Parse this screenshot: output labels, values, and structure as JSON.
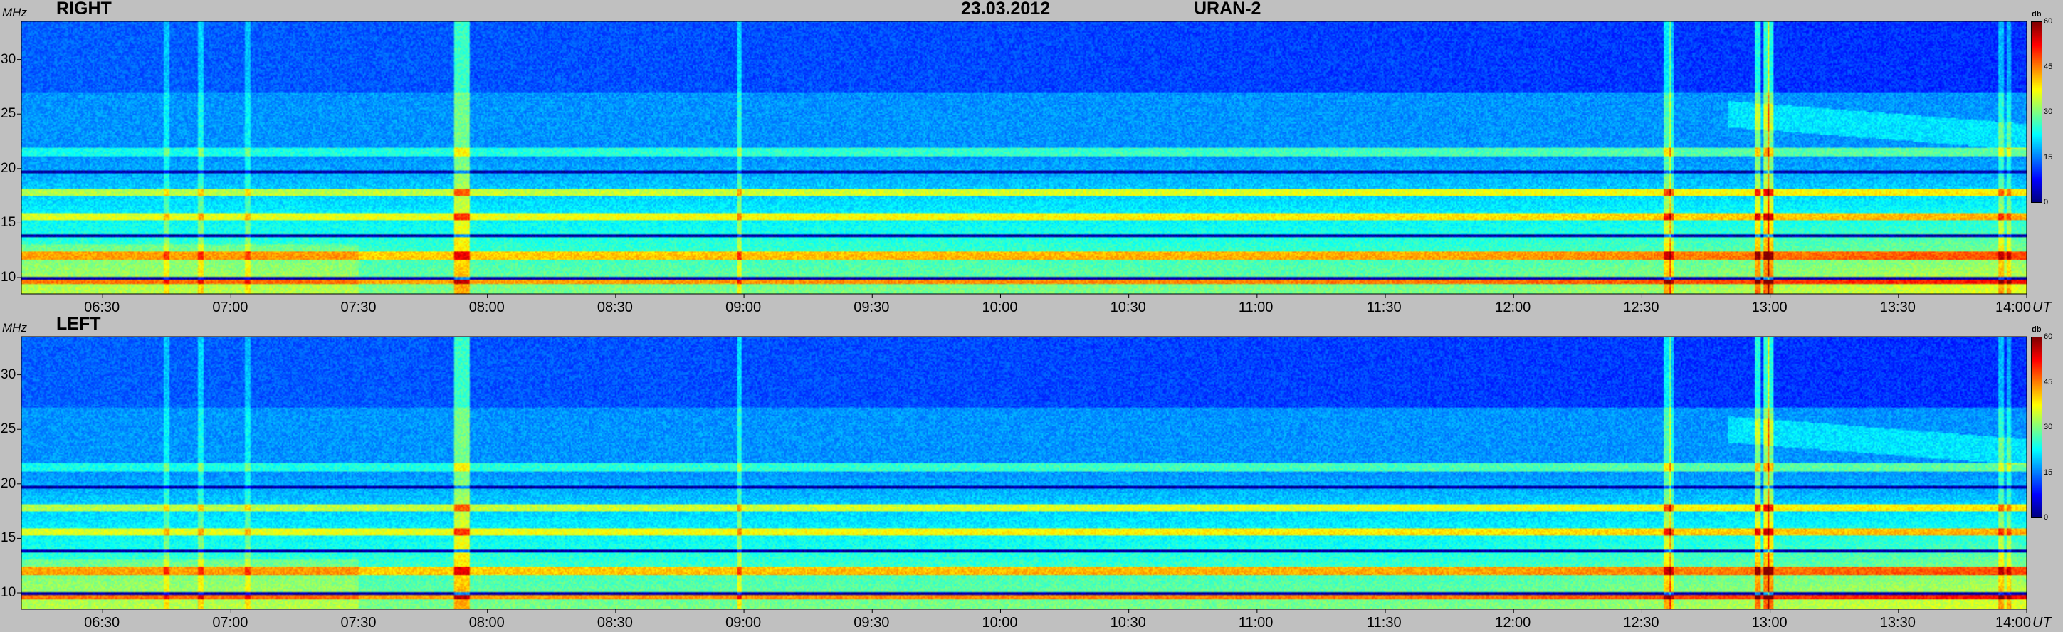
{
  "header": {
    "date": "23.03.2012",
    "station": "URAN-2"
  },
  "chart_data": [
    {
      "type": "heatmap",
      "panel_label": "RIGHT",
      "ylabel": "MHz",
      "xunit": "UT",
      "colorbar_unit": "db",
      "colorbar_ticks": [
        "60",
        "45",
        "30",
        "15",
        "0"
      ],
      "ylim": [
        8.5,
        33.5
      ],
      "y_ticks": [
        {
          "value": 30,
          "label": "30"
        },
        {
          "value": 25,
          "label": "25"
        },
        {
          "value": 20,
          "label": "20"
        },
        {
          "value": 15,
          "label": "15"
        },
        {
          "value": 10,
          "label": "10"
        }
      ],
      "xlim": [
        "06:11",
        "14:00"
      ],
      "x_ticks": [
        "06:30",
        "07:00",
        "07:30",
        "08:00",
        "08:30",
        "09:00",
        "09:30",
        "10:00",
        "10:30",
        "11:00",
        "11:30",
        "12:00",
        "12:30",
        "13:00",
        "13:30",
        "14:00"
      ],
      "zlim": [
        0,
        60
      ],
      "bright_bands_mhz": [
        21.5,
        17.8,
        15.6,
        12.0,
        9.7
      ],
      "dark_lines_mhz": [
        19.7,
        13.8,
        9.9
      ]
    },
    {
      "type": "heatmap",
      "panel_label": "LEFT",
      "ylabel": "MHz",
      "xunit": "UT",
      "colorbar_unit": "db",
      "colorbar_ticks": [
        "60",
        "45",
        "30",
        "15",
        "0"
      ],
      "ylim": [
        8.5,
        33.5
      ],
      "y_ticks": [
        {
          "value": 30,
          "label": "30"
        },
        {
          "value": 25,
          "label": "25"
        },
        {
          "value": 20,
          "label": "20"
        },
        {
          "value": 15,
          "label": "15"
        },
        {
          "value": 10,
          "label": "10"
        }
      ],
      "xlim": [
        "06:11",
        "14:00"
      ],
      "x_ticks": [
        "06:30",
        "07:00",
        "07:30",
        "08:00",
        "08:30",
        "09:00",
        "09:30",
        "10:00",
        "10:30",
        "11:00",
        "11:30",
        "12:00",
        "12:30",
        "13:00",
        "13:30",
        "14:00"
      ],
      "zlim": [
        0,
        60
      ],
      "bright_bands_mhz": [
        21.5,
        17.8,
        15.6,
        12.0,
        9.7
      ],
      "dark_lines_mhz": [
        19.7,
        13.8,
        9.9
      ]
    }
  ]
}
